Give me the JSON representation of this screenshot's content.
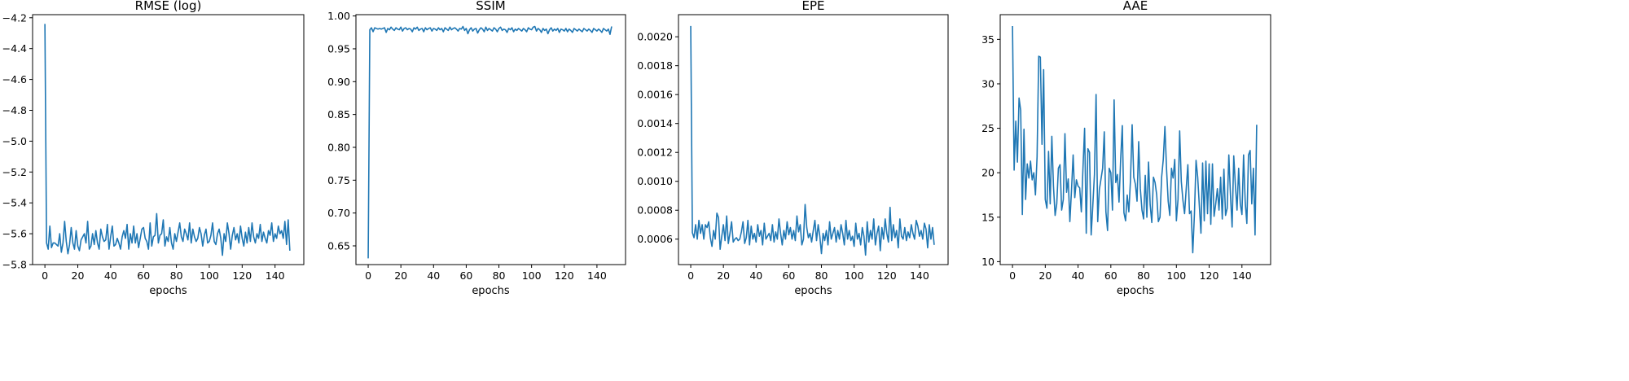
{
  "chart_data": [
    {
      "type": "line",
      "title": "RMSE (log)",
      "xlabel": "epochs",
      "ylabel": "",
      "xlim": [
        -7.5,
        157.5
      ],
      "ylim": [
        -5.8,
        -4.18
      ],
      "xticks": [
        0,
        20,
        40,
        60,
        80,
        100,
        120,
        140
      ],
      "yticks": [
        -5.8,
        -5.6,
        -5.4,
        -5.2,
        -5.0,
        -4.8,
        -4.6,
        -4.4,
        -4.2
      ],
      "ytick_labels": [
        "−5.8",
        "−5.6",
        "−5.4",
        "−5.2",
        "−5.0",
        "−4.8",
        "−4.6",
        "−4.4",
        "−4.2"
      ],
      "color": "#1f77b4",
      "series": [
        {
          "values": [
            -4.24,
            -5.66,
            -5.7,
            -5.55,
            -5.69,
            -5.66,
            -5.66,
            -5.67,
            -5.68,
            -5.6,
            -5.72,
            -5.66,
            -5.52,
            -5.65,
            -5.73,
            -5.67,
            -5.56,
            -5.66,
            -5.7,
            -5.58,
            -5.68,
            -5.71,
            -5.64,
            -5.62,
            -5.6,
            -5.66,
            -5.52,
            -5.7,
            -5.68,
            -5.6,
            -5.67,
            -5.58,
            -5.66,
            -5.7,
            -5.57,
            -5.62,
            -5.65,
            -5.64,
            -5.54,
            -5.7,
            -5.62,
            -5.55,
            -5.68,
            -5.67,
            -5.63,
            -5.66,
            -5.7,
            -5.62,
            -5.58,
            -5.63,
            -5.54,
            -5.7,
            -5.6,
            -5.66,
            -5.55,
            -5.66,
            -5.6,
            -5.69,
            -5.63,
            -5.57,
            -5.56,
            -5.63,
            -5.65,
            -5.7,
            -5.53,
            -5.68,
            -5.62,
            -5.61,
            -5.47,
            -5.66,
            -5.61,
            -5.6,
            -5.51,
            -5.68,
            -5.62,
            -5.65,
            -5.56,
            -5.66,
            -5.7,
            -5.6,
            -5.65,
            -5.59,
            -5.53,
            -5.62,
            -5.65,
            -5.57,
            -5.6,
            -5.64,
            -5.53,
            -5.66,
            -5.57,
            -5.62,
            -5.65,
            -5.63,
            -5.56,
            -5.6,
            -5.68,
            -5.61,
            -5.57,
            -5.66,
            -5.65,
            -5.61,
            -5.53,
            -5.65,
            -5.67,
            -5.6,
            -5.57,
            -5.63,
            -5.74,
            -5.6,
            -5.65,
            -5.53,
            -5.6,
            -5.7,
            -5.61,
            -5.56,
            -5.64,
            -5.6,
            -5.66,
            -5.55,
            -5.63,
            -5.68,
            -5.59,
            -5.66,
            -5.56,
            -5.65,
            -5.53,
            -5.62,
            -5.66,
            -5.6,
            -5.63,
            -5.54,
            -5.65,
            -5.59,
            -5.63,
            -5.66,
            -5.58,
            -5.61,
            -5.53,
            -5.65,
            -5.6,
            -5.63,
            -5.55,
            -5.6,
            -5.58,
            -5.63,
            -5.52,
            -5.67,
            -5.51,
            -5.71
          ]
        }
      ]
    },
    {
      "type": "line",
      "title": "SSIM",
      "xlabel": "epochs",
      "ylabel": "",
      "xlim": [
        -7.5,
        157.5
      ],
      "ylim": [
        0.6215,
        1.002
      ],
      "xticks": [
        0,
        20,
        40,
        60,
        80,
        100,
        120,
        140
      ],
      "yticks": [
        0.65,
        0.7,
        0.75,
        0.8,
        0.85,
        0.9,
        0.95,
        1.0
      ],
      "ytick_labels": [
        "0.65",
        "0.70",
        "0.75",
        "0.80",
        "0.85",
        "0.90",
        "0.95",
        "1.00"
      ],
      "color": "#1f77b4",
      "series": [
        {
          "values": [
            0.631,
            0.979,
            0.982,
            0.976,
            0.982,
            0.981,
            0.98,
            0.981,
            0.98,
            0.981,
            0.982,
            0.975,
            0.981,
            0.979,
            0.983,
            0.98,
            0.978,
            0.982,
            0.98,
            0.979,
            0.983,
            0.977,
            0.981,
            0.982,
            0.979,
            0.981,
            0.98,
            0.976,
            0.982,
            0.98,
            0.983,
            0.978,
            0.98,
            0.981,
            0.976,
            0.982,
            0.979,
            0.981,
            0.982,
            0.977,
            0.981,
            0.98,
            0.978,
            0.982,
            0.979,
            0.981,
            0.976,
            0.982,
            0.98,
            0.978,
            0.983,
            0.979,
            0.981,
            0.982,
            0.98,
            0.977,
            0.981,
            0.98,
            0.984,
            0.978,
            0.981,
            0.973,
            0.979,
            0.982,
            0.977,
            0.98,
            0.981,
            0.974,
            0.979,
            0.982,
            0.98,
            0.976,
            0.983,
            0.978,
            0.981,
            0.979,
            0.977,
            0.982,
            0.98,
            0.976,
            0.981,
            0.983,
            0.978,
            0.98,
            0.979,
            0.975,
            0.981,
            0.979,
            0.982,
            0.976,
            0.98,
            0.978,
            0.981,
            0.979,
            0.977,
            0.981,
            0.979,
            0.976,
            0.982,
            0.98,
            0.979,
            0.983,
            0.984,
            0.977,
            0.981,
            0.979,
            0.975,
            0.981,
            0.978,
            0.98,
            0.973,
            0.979,
            0.982,
            0.977,
            0.98,
            0.978,
            0.981,
            0.975,
            0.98,
            0.979,
            0.977,
            0.981,
            0.976,
            0.98,
            0.978,
            0.975,
            0.981,
            0.979,
            0.977,
            0.98,
            0.978,
            0.976,
            0.981,
            0.979,
            0.977,
            0.98,
            0.978,
            0.975,
            0.981,
            0.979,
            0.977,
            0.98,
            0.978,
            0.975,
            0.981,
            0.979,
            0.977,
            0.98,
            0.972,
            0.984
          ]
        }
      ]
    },
    {
      "type": "line",
      "title": "EPE",
      "xlabel": "epochs",
      "ylabel": "",
      "xlim": [
        -7.5,
        157.5
      ],
      "ylim": [
        0.000424,
        0.002153
      ],
      "xticks": [
        0,
        20,
        40,
        60,
        80,
        100,
        120,
        140
      ],
      "yticks": [
        0.0006,
        0.0008,
        0.001,
        0.0012,
        0.0014,
        0.0016,
        0.0018,
        0.002
      ],
      "ytick_labels": [
        "0.0006",
        "0.0008",
        "0.0010",
        "0.0012",
        "0.0014",
        "0.0016",
        "0.0018",
        "0.0020"
      ],
      "color": "#1f77b4",
      "series": [
        {
          "values": [
            0.002075,
            0.000645,
            0.00061,
            0.0007,
            0.0006,
            0.00073,
            0.00064,
            0.0007,
            0.0006,
            0.0007,
            0.00068,
            0.00072,
            0.00061,
            0.00055,
            0.00066,
            0.0006,
            0.00078,
            0.00075,
            0.00053,
            0.00062,
            0.0007,
            0.00059,
            0.00076,
            0.00057,
            0.00064,
            0.00072,
            0.00058,
            0.0006,
            0.00061,
            0.00059,
            0.0006,
            0.00065,
            0.00072,
            0.00057,
            0.00061,
            0.00073,
            0.00056,
            0.00069,
            0.0006,
            0.00064,
            0.00058,
            0.0007,
            0.00062,
            0.00066,
            0.00056,
            0.00071,
            0.0006,
            0.00062,
            0.00064,
            0.00059,
            0.0007,
            0.00058,
            0.00065,
            0.0006,
            0.00074,
            0.00064,
            0.00056,
            0.00066,
            0.0006,
            0.00072,
            0.00063,
            0.00068,
            0.0006,
            0.00066,
            0.00059,
            0.00076,
            0.00065,
            0.0007,
            0.00056,
            0.0006,
            0.00084,
            0.00068,
            0.00061,
            0.00064,
            0.00058,
            0.00066,
            0.00073,
            0.00059,
            0.0007,
            0.00062,
            0.0005,
            0.00064,
            0.00059,
            0.00066,
            0.00056,
            0.00072,
            0.0006,
            0.00064,
            0.00068,
            0.00058,
            0.00066,
            0.0006,
            0.0007,
            0.00064,
            0.00056,
            0.00073,
            0.0006,
            0.00066,
            0.00059,
            0.00062,
            0.00055,
            0.00071,
            0.0006,
            0.00064,
            0.00056,
            0.00068,
            0.00062,
            0.00049,
            0.00072,
            0.00058,
            0.00066,
            0.0006,
            0.00074,
            0.00056,
            0.00064,
            0.00069,
            0.00052,
            0.00068,
            0.0006,
            0.00074,
            0.00064,
            0.00058,
            0.00082,
            0.00059,
            0.0007,
            0.00061,
            0.00066,
            0.00054,
            0.00074,
            0.00062,
            0.0006,
            0.00068,
            0.00059,
            0.00065,
            0.00061,
            0.0007,
            0.00064,
            0.0006,
            0.00073,
            0.00069,
            0.00062,
            0.00066,
            0.0006,
            0.00071,
            0.00067,
            0.00054,
            0.0007,
            0.0006,
            0.00068,
            0.00056
          ]
        }
      ]
    },
    {
      "type": "line",
      "title": "AAE",
      "xlabel": "epochs",
      "ylabel": "",
      "xlim": [
        -7.5,
        157.5
      ],
      "ylim": [
        9.67,
        37.78
      ],
      "xticks": [
        0,
        20,
        40,
        60,
        80,
        100,
        120,
        140
      ],
      "yticks": [
        10,
        15,
        20,
        25,
        30,
        35
      ],
      "ytick_labels": [
        "10",
        "15",
        "20",
        "25",
        "30",
        "35"
      ],
      "color": "#1f77b4",
      "series": [
        {
          "values": [
            36.5,
            20.3,
            25.8,
            21.2,
            28.4,
            27.0,
            15.3,
            24.9,
            17.0,
            21.0,
            19.4,
            21.3,
            19.2,
            20.0,
            17.5,
            21.8,
            33.1,
            33.0,
            23.2,
            31.6,
            17.0,
            16.0,
            22.4,
            16.5,
            24.1,
            18.5,
            15.2,
            16.5,
            20.5,
            20.9,
            15.8,
            17.0,
            24.4,
            17.8,
            19.3,
            14.5,
            18.0,
            22.0,
            17.2,
            19.2,
            18.5,
            18.3,
            15.6,
            20.5,
            25.0,
            13.2,
            22.7,
            22.3,
            13.0,
            16.3,
            19.8,
            28.8,
            14.5,
            18.1,
            19.3,
            20.5,
            24.6,
            15.6,
            13.5,
            20.5,
            20.0,
            15.8,
            28.2,
            18.9,
            19.8,
            16.7,
            21.5,
            25.3,
            15.5,
            14.6,
            17.5,
            15.6,
            19.2,
            25.4,
            19.5,
            18.7,
            16.8,
            23.5,
            18.2,
            15.8,
            14.8,
            19.7,
            15.0,
            21.2,
            16.4,
            14.4,
            19.5,
            18.9,
            17.5,
            14.5,
            15.0,
            19.5,
            21.5,
            25.2,
            20.4,
            16.8,
            15.2,
            20.5,
            19.4,
            21.5,
            14.6,
            17.0,
            24.7,
            19.0,
            16.9,
            15.4,
            18.2,
            20.9,
            15.4,
            15.7,
            11.0,
            15.3,
            21.4,
            19.5,
            16.3,
            13.2,
            21.1,
            14.6,
            21.3,
            15.4,
            21.0,
            14.2,
            21.0,
            15.1,
            16.5,
            18.2,
            15.8,
            19.5,
            14.8,
            20.4,
            15.2,
            16.0,
            22.0,
            17.5,
            13.9,
            21.9,
            18.6,
            15.8,
            20.5,
            16.5,
            15.3,
            22.0,
            16.7,
            14.3,
            22.0,
            22.5,
            16.5,
            20.5,
            13.0,
            25.4
          ]
        }
      ]
    }
  ]
}
